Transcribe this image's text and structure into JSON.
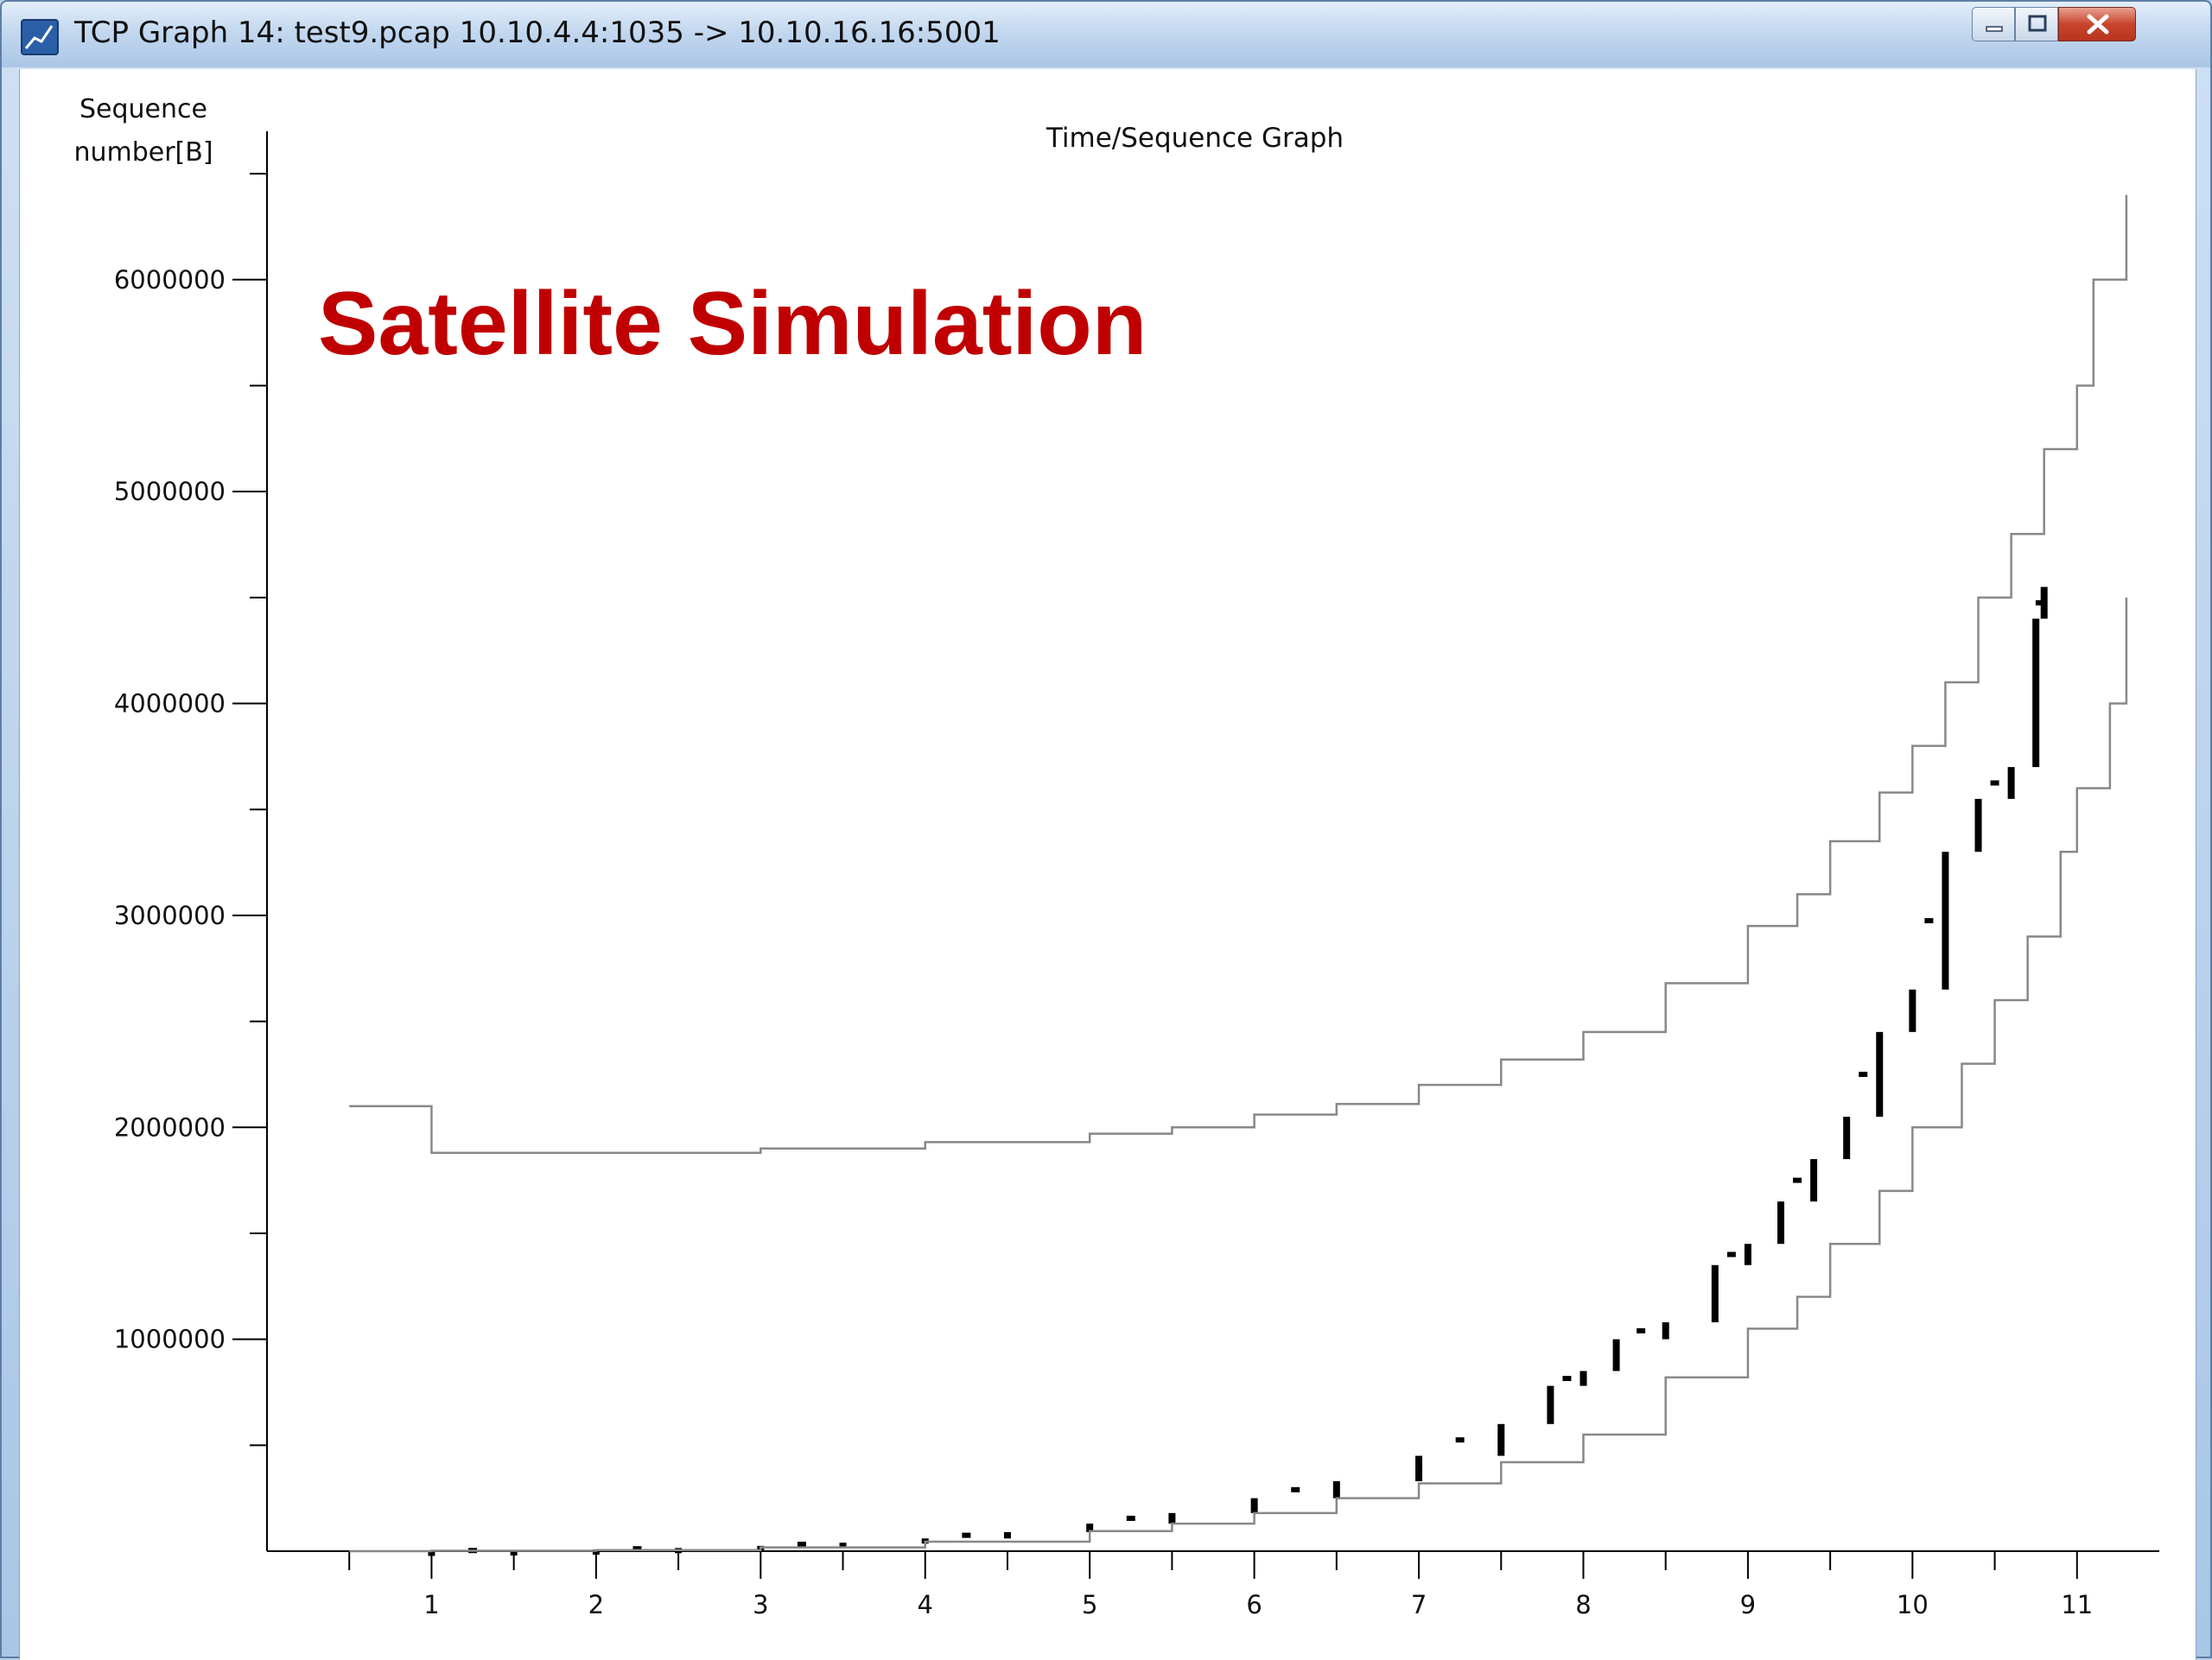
{
  "window": {
    "title": "TCP Graph 14: test9.pcap 10.10.4.4:1035 -> 10.10.16.16:5001"
  },
  "chart_data": {
    "type": "line",
    "title": "Time/Sequence Graph",
    "annotation": "Satellite Simulation",
    "annotation_color": "#c00000",
    "ylabel_line1": "Sequence",
    "ylabel_line2": "number[B]",
    "xlabel": "",
    "xlim": [
      0,
      11.5
    ],
    "ylim": [
      0,
      6700000
    ],
    "x_ticks": [
      "1",
      "2",
      "3",
      "4",
      "5",
      "6",
      "7",
      "8",
      "9",
      "10",
      "11"
    ],
    "y_ticks": [
      "1000000",
      "2000000",
      "3000000",
      "4000000",
      "5000000",
      "6000000"
    ],
    "grid": false,
    "series": [
      {
        "style": "upper-window-step",
        "color": "#888888",
        "points": [
          [
            0.5,
            2100000
          ],
          [
            1.0,
            2100000
          ],
          [
            1.0,
            1880000
          ],
          [
            2,
            1880000
          ],
          [
            3,
            1900000
          ],
          [
            4,
            1930000
          ],
          [
            5,
            1970000
          ],
          [
            5.5,
            2000000
          ],
          [
            6,
            2060000
          ],
          [
            6.5,
            2110000
          ],
          [
            7,
            2200000
          ],
          [
            7.5,
            2320000
          ],
          [
            8,
            2450000
          ],
          [
            8.5,
            2680000
          ],
          [
            9,
            2950000
          ],
          [
            9.3,
            3100000
          ],
          [
            9.5,
            3350000
          ],
          [
            9.8,
            3580000
          ],
          [
            10,
            3800000
          ],
          [
            10.2,
            4100000
          ],
          [
            10.4,
            4500000
          ],
          [
            10.6,
            4800000
          ],
          [
            10.8,
            5200000
          ],
          [
            11.0,
            5500000
          ],
          [
            11.1,
            6000000
          ],
          [
            11.3,
            6400000
          ]
        ]
      },
      {
        "style": "data-segments",
        "color": "#000000",
        "points": [
          [
            0.5,
            0
          ],
          [
            1,
            2000
          ],
          [
            1.5,
            4000
          ],
          [
            2,
            8000
          ],
          [
            2.5,
            15000
          ],
          [
            3,
            25000
          ],
          [
            3.5,
            40000
          ],
          [
            4,
            60000
          ],
          [
            4.5,
            90000
          ],
          [
            5,
            130000
          ],
          [
            5.5,
            180000
          ],
          [
            6,
            250000
          ],
          [
            6.5,
            330000
          ],
          [
            7,
            450000
          ],
          [
            7.5,
            600000
          ],
          [
            7.8,
            780000
          ],
          [
            8,
            850000
          ],
          [
            8.2,
            1000000
          ],
          [
            8.5,
            1080000
          ],
          [
            8.8,
            1350000
          ],
          [
            9,
            1450000
          ],
          [
            9.2,
            1650000
          ],
          [
            9.4,
            1850000
          ],
          [
            9.6,
            2050000
          ],
          [
            9.8,
            2450000
          ],
          [
            10,
            2650000
          ],
          [
            10.2,
            3300000
          ],
          [
            10.4,
            3550000
          ],
          [
            10.6,
            3700000
          ],
          [
            10.75,
            4400000
          ],
          [
            10.8,
            4550000
          ]
        ]
      },
      {
        "style": "ack-step",
        "color": "#888888",
        "points": [
          [
            0.5,
            0
          ],
          [
            1,
            2000
          ],
          [
            2,
            5000
          ],
          [
            3,
            18000
          ],
          [
            4,
            45000
          ],
          [
            5,
            95000
          ],
          [
            5.5,
            130000
          ],
          [
            6,
            180000
          ],
          [
            6.5,
            250000
          ],
          [
            7,
            320000
          ],
          [
            7.5,
            420000
          ],
          [
            8,
            550000
          ],
          [
            8.5,
            820000
          ],
          [
            9,
            1050000
          ],
          [
            9.3,
            1200000
          ],
          [
            9.5,
            1450000
          ],
          [
            9.8,
            1700000
          ],
          [
            10,
            2000000
          ],
          [
            10.3,
            2300000
          ],
          [
            10.5,
            2600000
          ],
          [
            10.7,
            2900000
          ],
          [
            10.9,
            3300000
          ],
          [
            11,
            3600000
          ],
          [
            11.2,
            4000000
          ],
          [
            11.3,
            4500000
          ]
        ]
      }
    ]
  }
}
